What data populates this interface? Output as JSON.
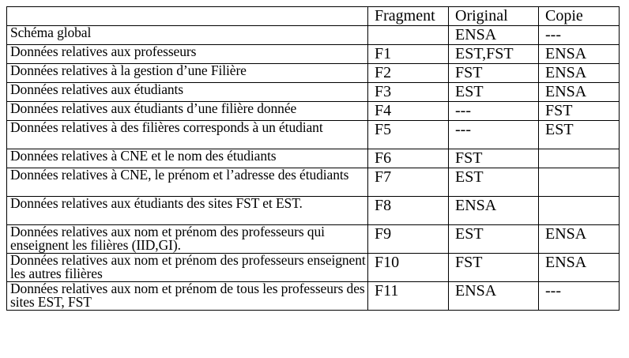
{
  "header": {
    "description": "",
    "fragment": "Fragment",
    "original": "Original",
    "copie": "Copie"
  },
  "rows": [
    {
      "description": "Schéma global",
      "fragment": "",
      "original": "ENSA",
      "copie": "---"
    },
    {
      "description": "Données relatives aux professeurs",
      "fragment": "F1",
      "original": "EST,FST",
      "copie": "ENSA"
    },
    {
      "description": "Données relatives à la gestion d’une Filière",
      "fragment": "F2",
      "original": "FST",
      "copie": "ENSA"
    },
    {
      "description": "Données relatives aux étudiants",
      "fragment": "F3",
      "original": "EST",
      "copie": "ENSA"
    },
    {
      "description": "Données relatives aux étudiants d’une filière donnée",
      "fragment": "F4",
      "original": "---",
      "copie": "FST"
    },
    {
      "description": "Données relatives à des filières corresponds à un étudiant",
      "fragment": "F5",
      "original": "---",
      "copie": "EST"
    },
    {
      "description": "Données relatives à CNE et le nom des étudiants",
      "fragment": "F6",
      "original": "FST",
      "copie": ""
    },
    {
      "description": "Données relatives à CNE, le prénom et l’adresse des étudiants",
      "fragment": "F7",
      "original": "EST",
      "copie": ""
    },
    {
      "description": "Données relatives aux étudiants des sites FST et EST.",
      "fragment": "F8",
      "original": "ENSA",
      "copie": ""
    },
    {
      "description": "Données relatives aux nom et prénom des professeurs qui enseignent les filières (IID,GI).",
      "fragment": "F9",
      "original": "EST",
      "copie": "ENSA"
    },
    {
      "description": "Données relatives aux nom et prénom des professeurs enseignent les autres filières",
      "fragment": "F10",
      "original": "FST",
      "copie": "ENSA"
    },
    {
      "description": "Données relatives aux nom et prénom de tous les professeurs des sites EST, FST",
      "fragment": "F11",
      "original": "ENSA",
      "copie": "---"
    }
  ]
}
